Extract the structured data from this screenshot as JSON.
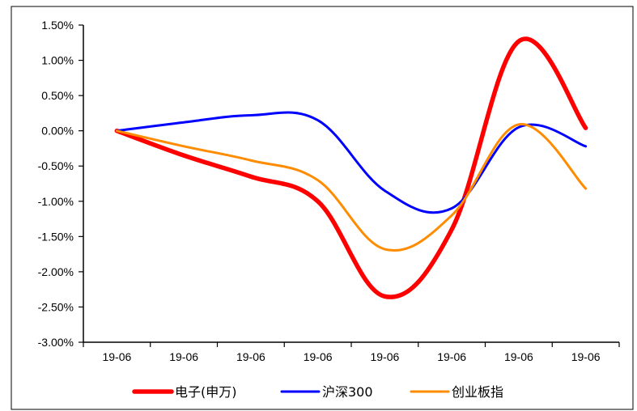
{
  "chart_data": {
    "type": "line",
    "title": "",
    "xlabel": "",
    "ylabel": "",
    "categories": [
      "19-06",
      "19-06",
      "19-06",
      "19-06",
      "19-06",
      "19-06",
      "19-06",
      "19-06"
    ],
    "y_tick_labels": [
      "1.50%",
      "1.00%",
      "0.50%",
      "0.00%",
      "-0.50%",
      "-1.00%",
      "-1.50%",
      "-2.00%",
      "-2.50%",
      "-3.00%"
    ],
    "y_tick_values": [
      1.5,
      1.0,
      0.5,
      0.0,
      -0.5,
      -1.0,
      -1.5,
      -2.0,
      -2.5,
      -3.0
    ],
    "ylim": [
      -3.0,
      1.5
    ],
    "y_unit": "%",
    "grid": false,
    "legend_position": "bottom",
    "x_positions": [
      0,
      1,
      2,
      3,
      4,
      5,
      6,
      7
    ],
    "series": [
      {
        "name": "电子(申万)",
        "color": "#FF0000",
        "stroke": "thick",
        "values": [
          0.0,
          -0.35,
          -0.65,
          -1.0,
          -2.35,
          -1.4,
          1.27,
          0.04
        ]
      },
      {
        "name": "沪深300",
        "color": "#0000FF",
        "stroke": "normal",
        "values": [
          0.0,
          0.12,
          0.22,
          0.15,
          -0.85,
          -1.1,
          0.05,
          -0.22
        ]
      },
      {
        "name": "创业板指",
        "color": "#FF8C00",
        "stroke": "normal",
        "values": [
          0.0,
          -0.22,
          -0.42,
          -0.7,
          -1.68,
          -1.2,
          0.09,
          -0.82
        ]
      }
    ]
  }
}
